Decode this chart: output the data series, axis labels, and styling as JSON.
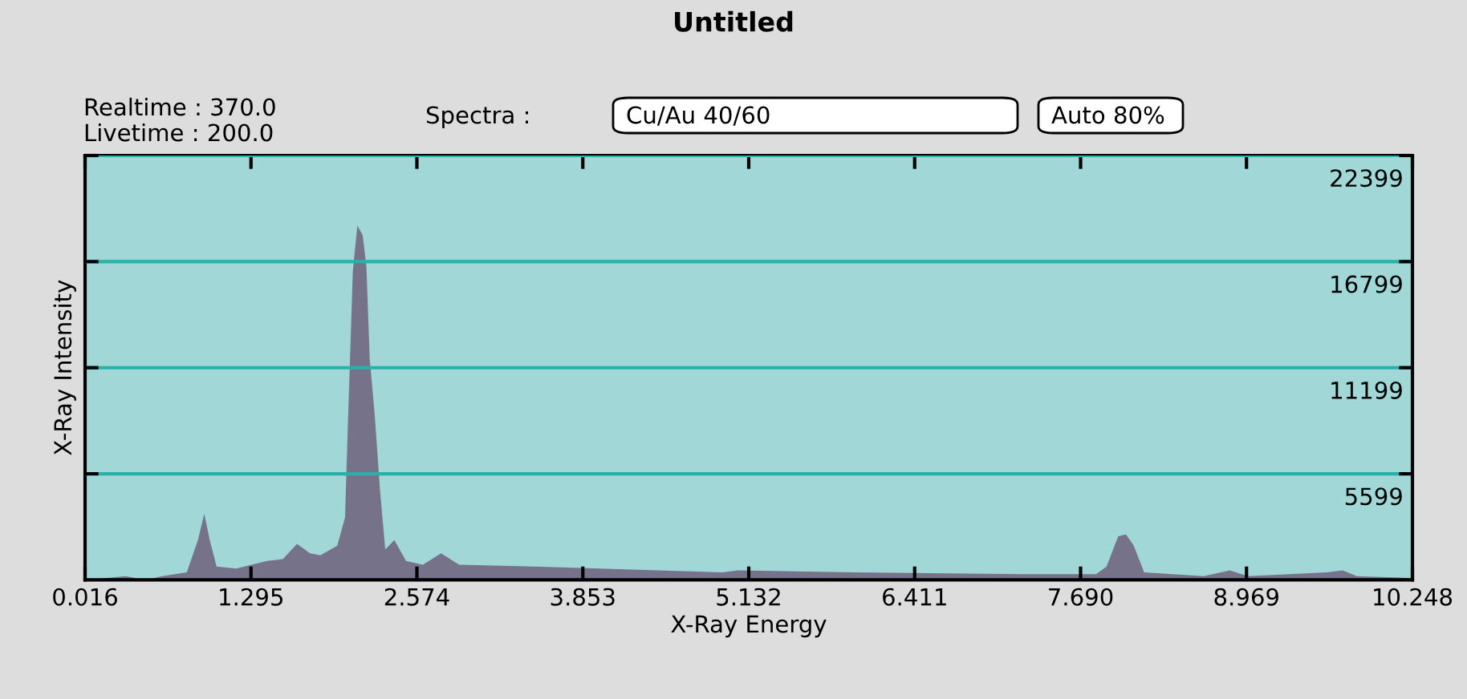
{
  "chart_data": {
    "type": "area",
    "title": "Untitled",
    "xlabel": "X-Ray Energy",
    "ylabel": "X-Ray Intensity",
    "annotations": [
      "Realtime : 370.0",
      "Livetime : 200.0",
      "Spectra :",
      "Cu/Au 40/60",
      "Auto 80%"
    ],
    "x": [
      0.016,
      0.33,
      0.48,
      0.61,
      0.8,
      0.886,
      0.935,
      0.977,
      1.03,
      1.18,
      1.42,
      1.54,
      1.65,
      1.75,
      1.83,
      1.96,
      2.02,
      2.04,
      2.06,
      2.08,
      2.115,
      2.156,
      2.185,
      2.21,
      2.25,
      2.29,
      2.33,
      2.4,
      2.49,
      2.62,
      2.76,
      2.9,
      3.48,
      4.93,
      5.05,
      5.95,
      7.24,
      7.81,
      7.89,
      7.98,
      8.04,
      8.1,
      8.18,
      8.64,
      8.84,
      8.98,
      9.59,
      9.71,
      9.82,
      10.22
    ],
    "series": [
      {
        "color": "#76728a",
        "values": [
          0,
          200,
          0,
          200,
          400,
          2100,
          3500,
          2100,
          700,
          600,
          1000,
          1100,
          1900,
          1400,
          1300,
          1800,
          3300,
          7800,
          12000,
          16300,
          18700,
          18200,
          16500,
          11700,
          8600,
          4700,
          1600,
          2100,
          1000,
          800,
          1400,
          800,
          700,
          400,
          500,
          400,
          300,
          300,
          700,
          2300,
          2400,
          1800,
          400,
          200,
          500,
          200,
          400,
          500,
          200,
          100
        ]
      }
    ],
    "xlim": [
      0.016,
      10.248
    ],
    "xticks": [
      0.016,
      1.295,
      2.574,
      3.853,
      5.132,
      6.411,
      {
        "value": 7.69,
        "label": "7.690"
      },
      8.969,
      10.248
    ],
    "ylim": [
      0,
      22399
    ],
    "yticks": [
      5599,
      11199,
      16799,
      22399
    ],
    "grid": "y"
  }
}
